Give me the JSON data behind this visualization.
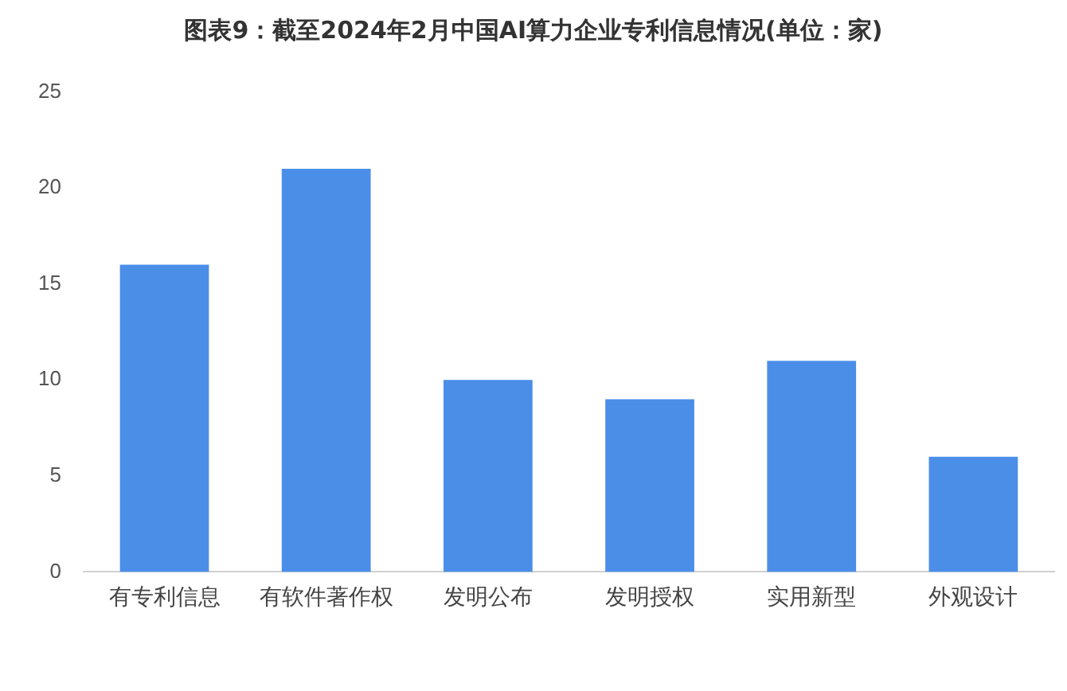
{
  "chart_data": {
    "type": "bar",
    "title": "图表9：截至2024年2月中国AI算力企业专利信息情况(单位：家)",
    "categories": [
      "有专利信息",
      "有软件著作权",
      "发明公布",
      "发明授权",
      "实用新型",
      "外观设计"
    ],
    "values": [
      16,
      21,
      10,
      9,
      11,
      6
    ],
    "color": "#4a8ee8",
    "ylim": [
      0,
      25
    ],
    "yticks": [
      0,
      5,
      10,
      15,
      20,
      25
    ],
    "grid": false,
    "legend": false
  }
}
